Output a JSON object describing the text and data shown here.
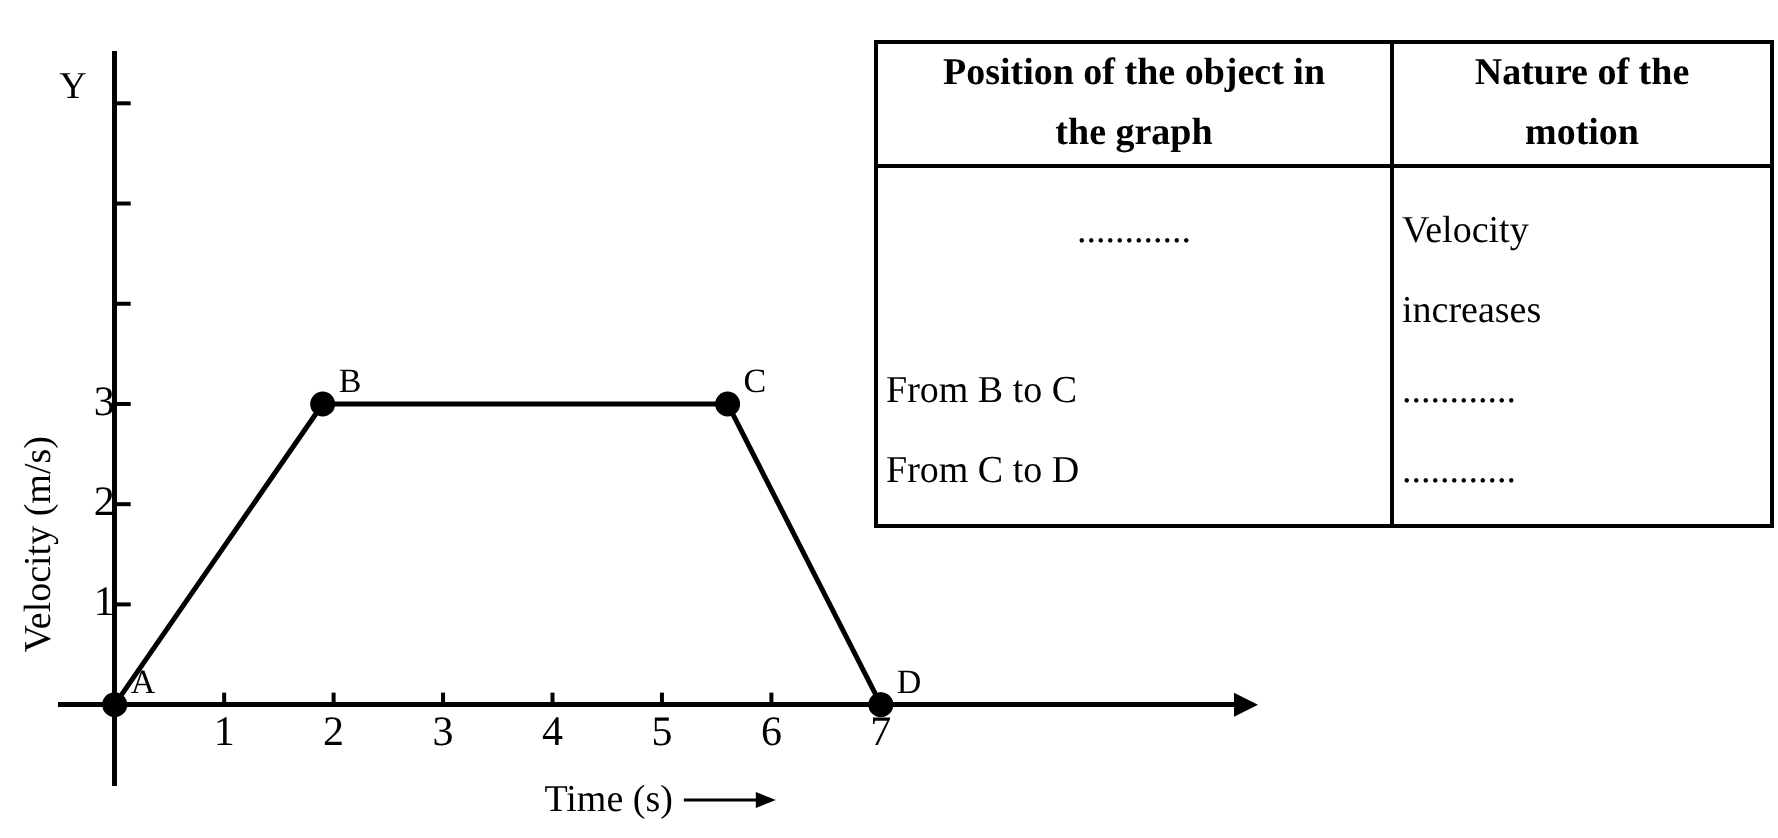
{
  "chart_data": {
    "type": "line",
    "xlabel": "Time (s)",
    "ylabel": "Velocity (m/s)",
    "x": [
      0,
      1.9,
      5.6,
      7
    ],
    "series": [
      {
        "color": "#000000",
        "values": [
          0,
          3,
          3,
          0
        ]
      }
    ],
    "xlim": [
      -0.5,
      10.3
    ],
    "xticks": [
      1,
      2,
      3,
      4,
      5,
      6,
      7
    ],
    "ylim": [
      -0.8,
      6.5
    ],
    "yticks": [
      1,
      2,
      3,
      {
        "value": 4,
        "label": null
      },
      {
        "value": 5,
        "label": null
      },
      {
        "value": 6,
        "label": null
      }
    ],
    "marker": "circle",
    "line_style": "solid",
    "grid": false,
    "legend": false,
    "annotations": [
      {
        "text": "A",
        "x": 0,
        "y": 0
      },
      {
        "text": "B",
        "x": 1.9,
        "y": 3
      },
      {
        "text": "C",
        "x": 5.6,
        "y": 3
      },
      {
        "text": "D",
        "x": 7,
        "y": 0
      },
      "Y",
      "Position of the object in the graph",
      "Nature of the motion",
      "............",
      "Velocity increases",
      "From B to C",
      "............",
      "From C to D",
      "............"
    ]
  }
}
